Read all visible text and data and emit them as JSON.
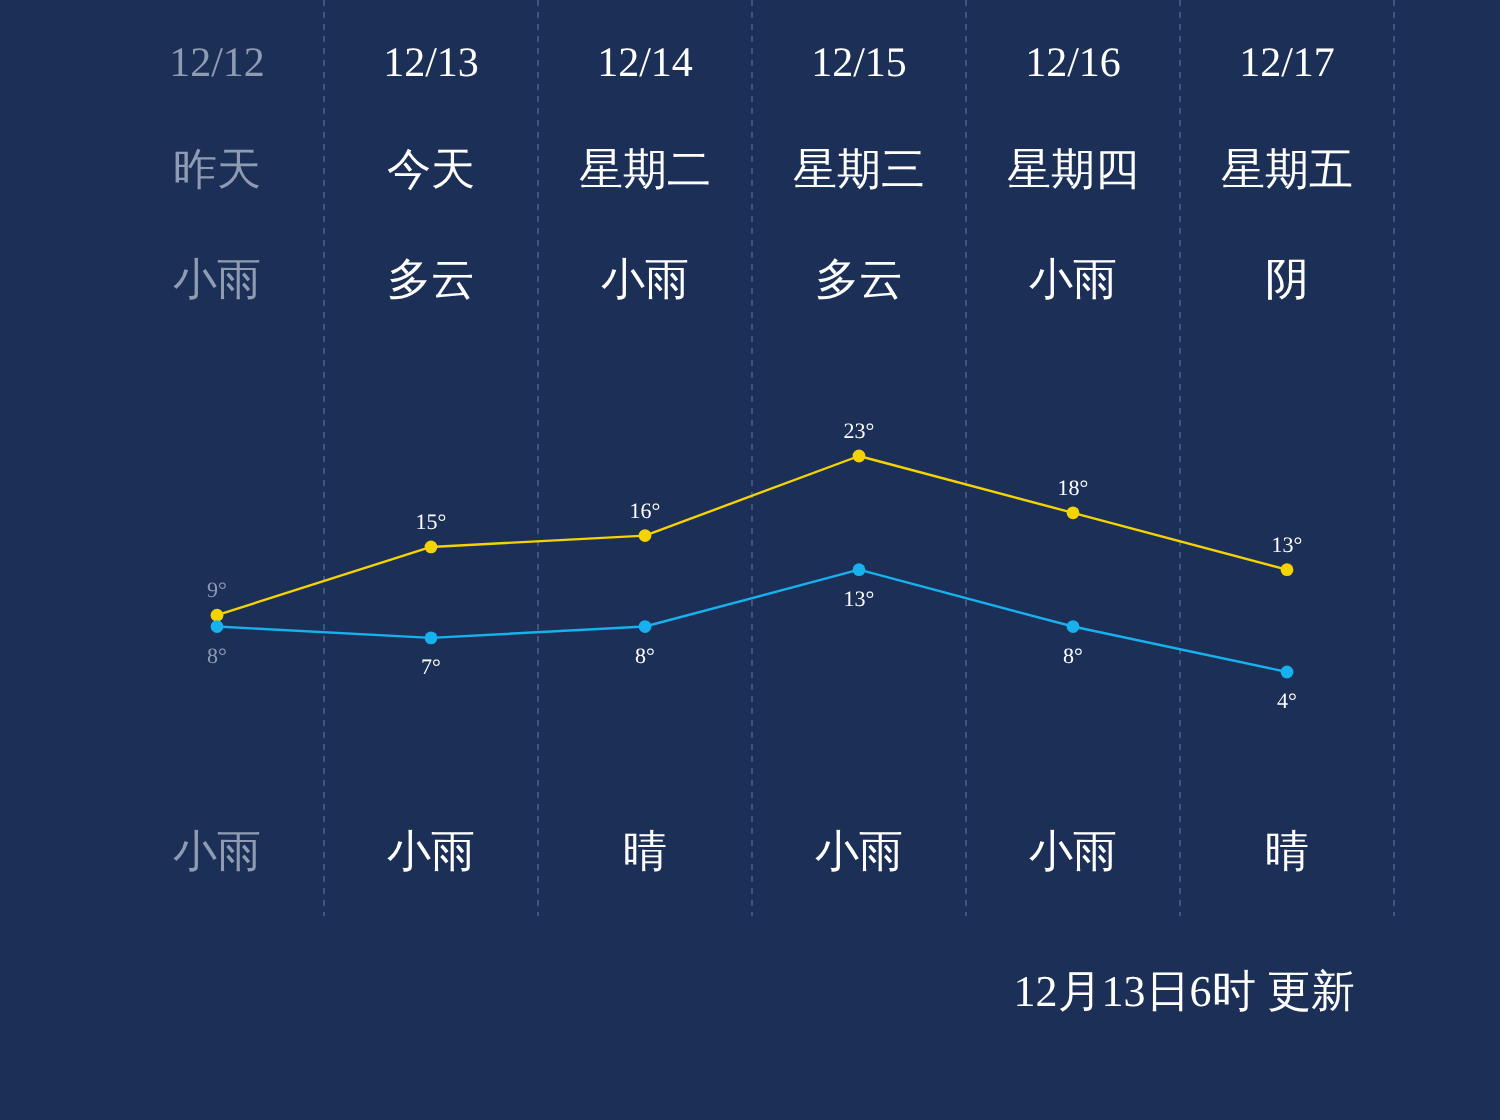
{
  "chart_data": {
    "type": "line",
    "categories": [
      "12/12",
      "12/13",
      "12/14",
      "12/15",
      "12/16",
      "12/17"
    ],
    "series": [
      {
        "color": "#f5d300",
        "values": [
          9,
          15,
          16,
          23,
          18,
          13
        ],
        "value_labels": [
          "9°",
          "15°",
          "16°",
          "23°",
          "18°",
          "13°"
        ]
      },
      {
        "color": "#17b1ee",
        "values": [
          8,
          7,
          8,
          13,
          8,
          4
        ],
        "value_labels": [
          "8°",
          "7°",
          "8°",
          "13°",
          "8°",
          "4°"
        ]
      }
    ],
    "marker": "circle",
    "grid": "x",
    "annotations": [
      "昨天",
      "今天",
      "星期二",
      "星期三",
      "星期四",
      "星期五",
      "小雨",
      "多云",
      "小雨",
      "多云",
      "小雨",
      "阴",
      "小雨",
      "小雨",
      "晴",
      "小雨",
      "小雨",
      "晴",
      "12月13日6时 更新"
    ]
  }
}
